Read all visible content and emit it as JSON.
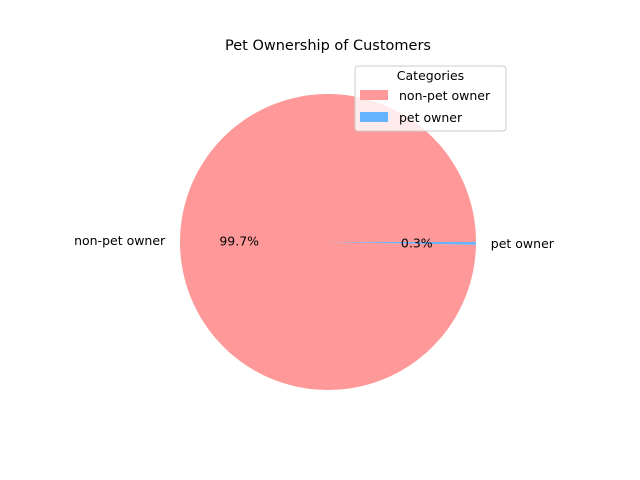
{
  "chart_data": {
    "type": "pie",
    "title": "Pet Ownership of Customers",
    "categories": [
      "non-pet owner",
      "pet owner"
    ],
    "values": [
      99.7,
      0.3
    ],
    "percent_labels": [
      "99.7%",
      "0.3%"
    ],
    "colors": [
      "#ff9999",
      "#66b3ff"
    ],
    "start_angle_deg": 0,
    "direction": "counterclockwise",
    "legend": {
      "title": "Categories",
      "placement": "upper-right",
      "entries": [
        "non-pet owner",
        "pet owner"
      ]
    }
  }
}
